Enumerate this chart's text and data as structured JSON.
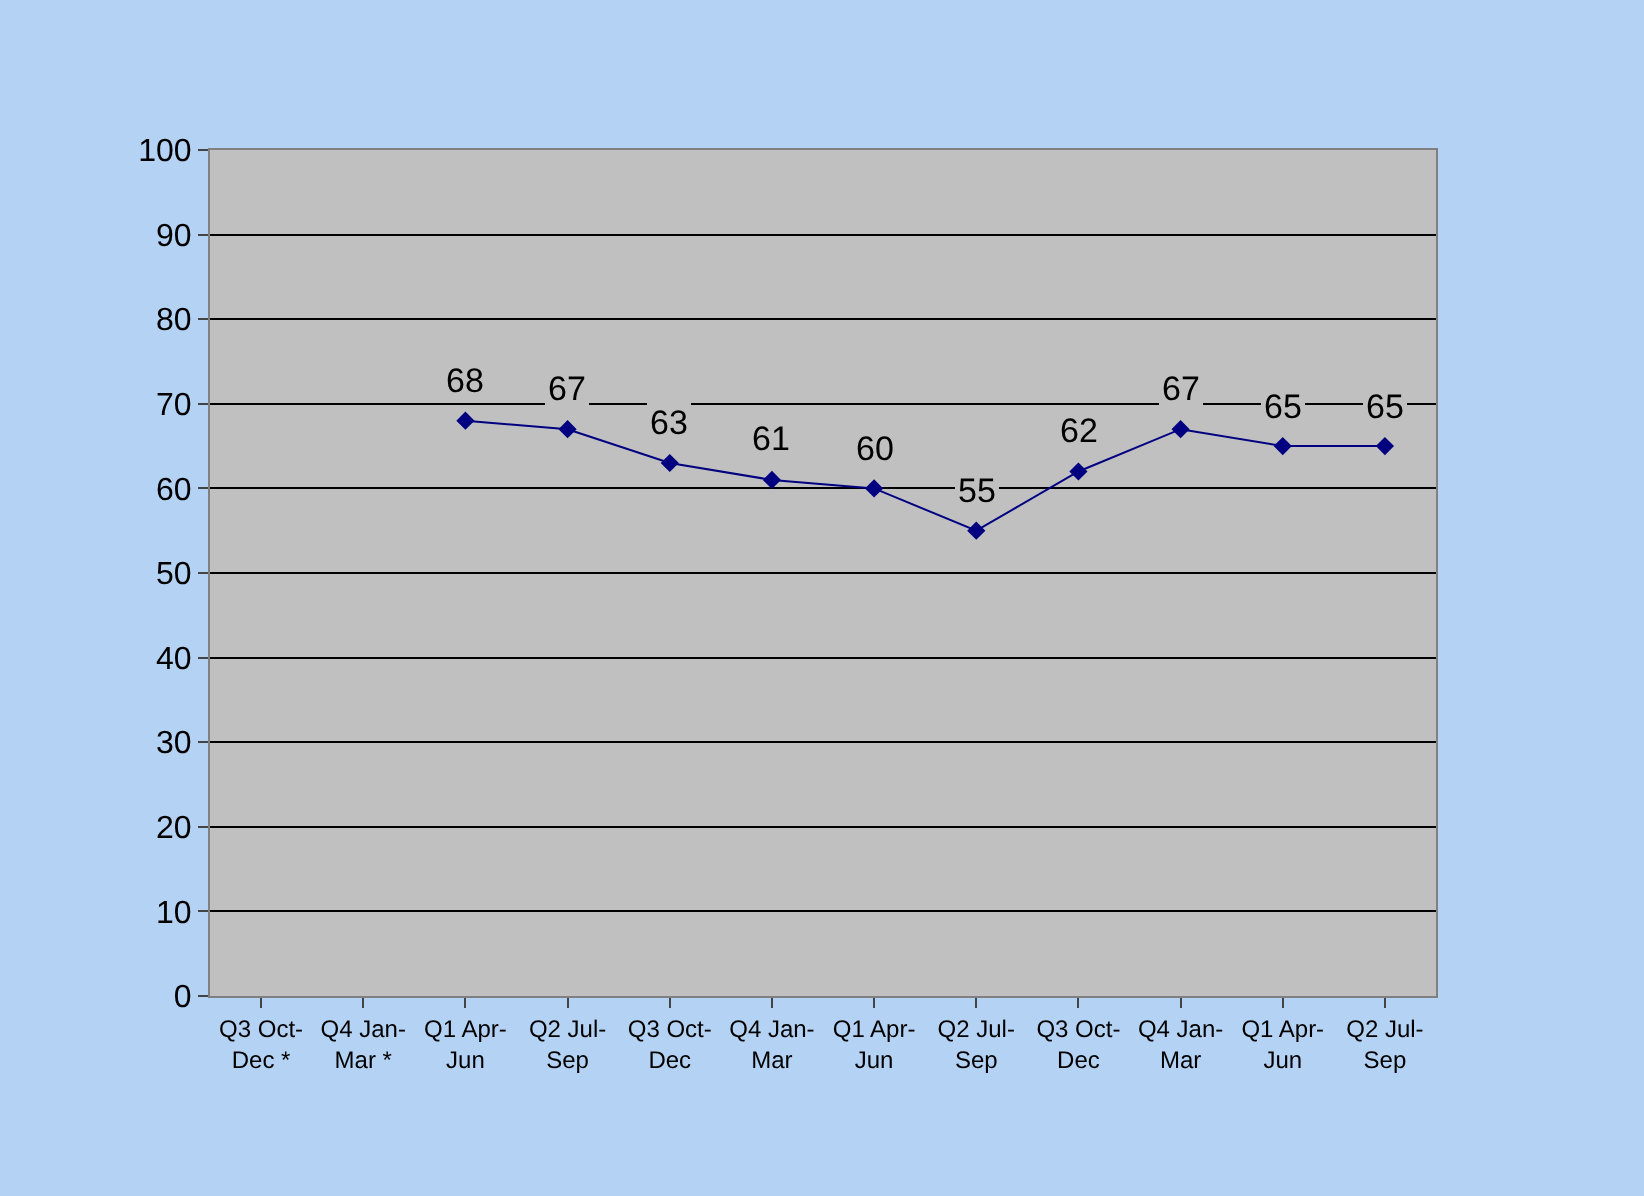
{
  "chart_data": {
    "type": "line",
    "categories": [
      "Q3 Oct-Dec *",
      "Q4 Jan-Mar *",
      "Q1 Apr-Jun",
      "Q2 Jul-Sep",
      "Q3 Oct-Dec",
      "Q4 Jan-Mar",
      "Q1 Apr-Jun",
      "Q2 Jul-Sep",
      "Q3 Oct-Dec",
      "Q4 Jan-Mar",
      "Q1 Apr-Jun",
      "Q2 Jul-Sep"
    ],
    "series": [
      {
        "color": "#000080",
        "values": [
          null,
          null,
          68,
          67,
          63,
          61,
          60,
          55,
          62,
          67,
          65,
          65
        ]
      }
    ],
    "ylim": [
      0,
      100
    ],
    "yticks": [
      0,
      10,
      20,
      30,
      40,
      50,
      60,
      70,
      80,
      90,
      100
    ],
    "grid": "y",
    "marker": "diamond",
    "line_style": "solid",
    "data_labels": true,
    "legend": false
  }
}
